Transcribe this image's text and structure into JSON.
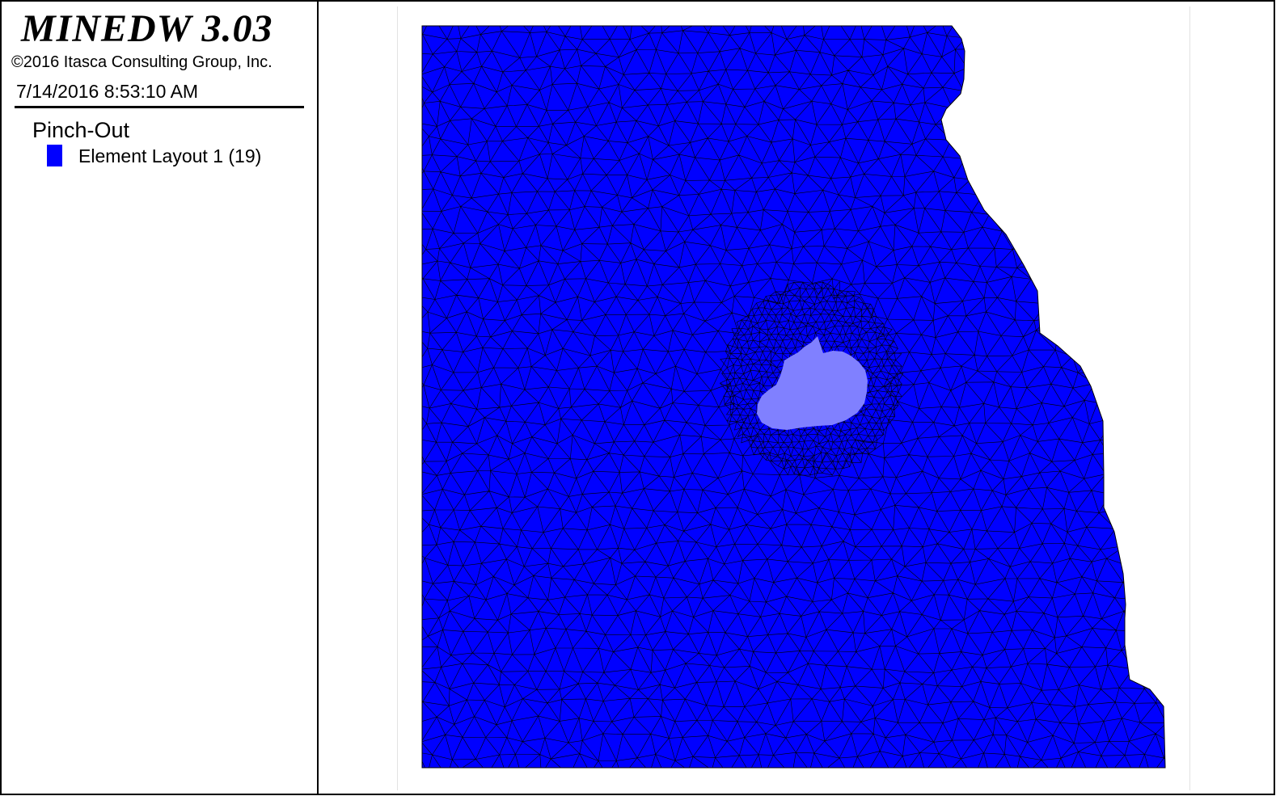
{
  "legend": {
    "app_title": "MINEDW 3.03",
    "copyright": "©2016 Itasca Consulting Group, Inc.",
    "timestamp": "7/14/2016 8:53:10 AM",
    "layer_name": "Pinch-Out",
    "entries": [
      {
        "label": "Element Layout 1 (19)",
        "color": "#0000FF"
      }
    ]
  },
  "plot": {
    "element_color": "#0000FF",
    "pinch_out_color": "#8080FF",
    "mesh_line_color": "#000000"
  }
}
